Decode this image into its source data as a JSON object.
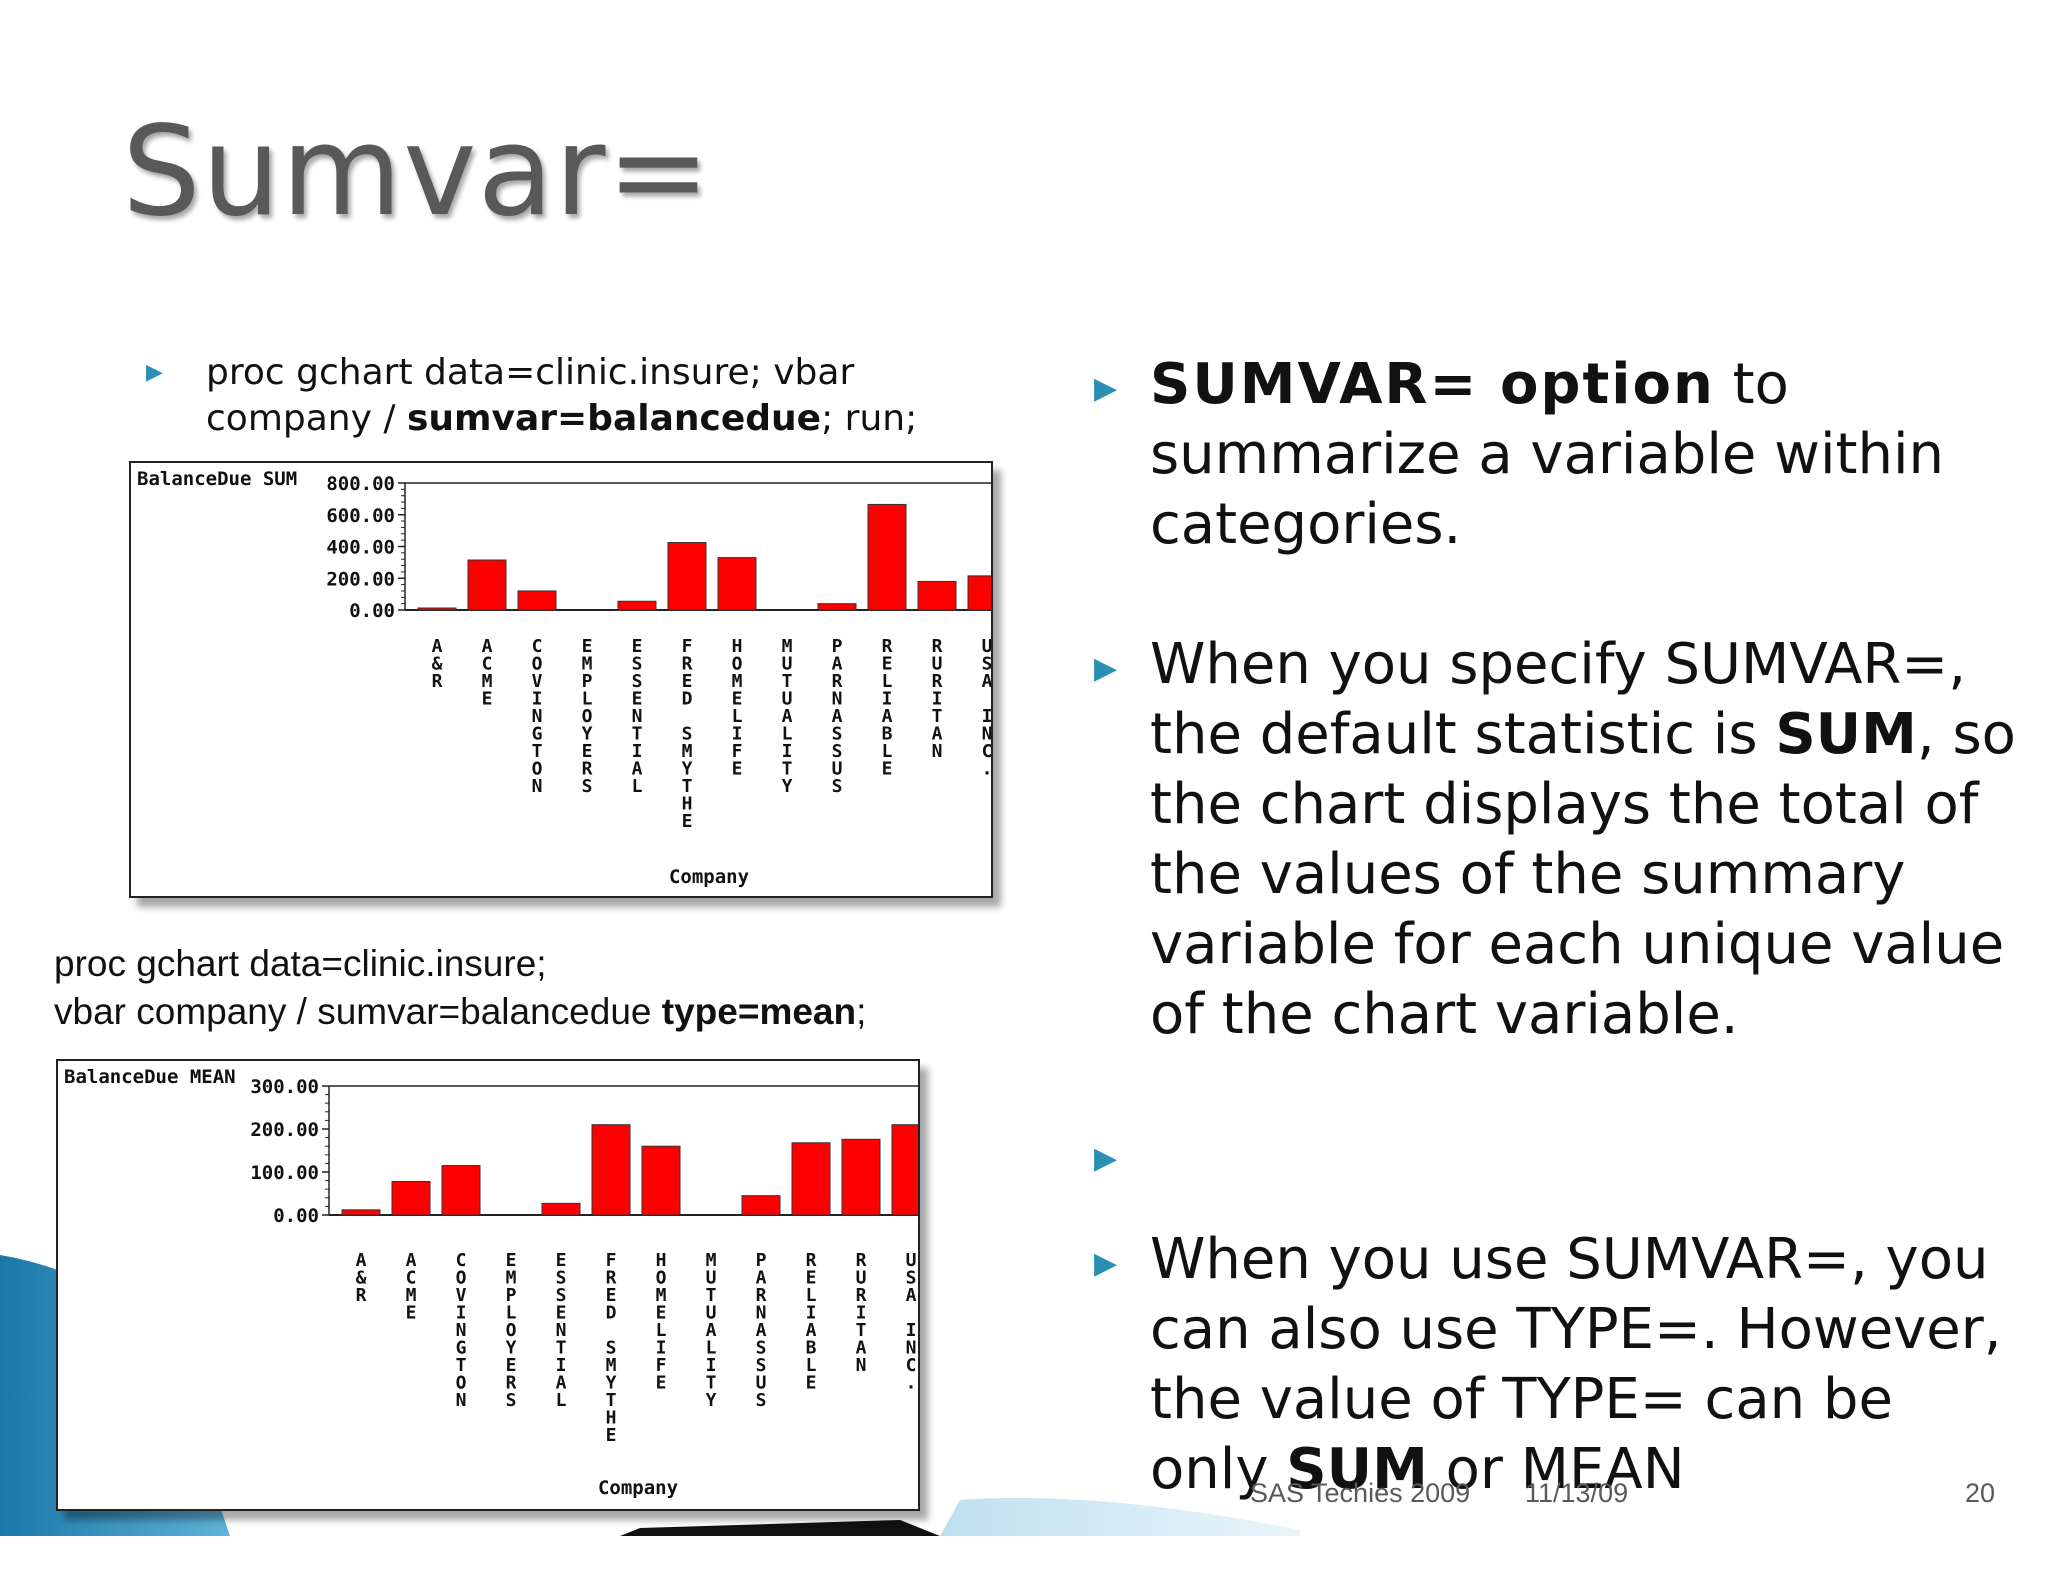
{
  "slide": {
    "title": "Sumvar=",
    "page_number": "20",
    "footer_left": "SAS Techies 2009",
    "footer_date": "11/13/09"
  },
  "code1": {
    "pre": "proc gchart data=clinic.insure; vbar company / ",
    "bold": "sumvar=balancedue",
    "post": "; run;"
  },
  "code2": {
    "line1": "proc gchart data=clinic.insure;",
    "line2_pre": "vbar company / sumvar=balancedue ",
    "line2_bold": "type=mean",
    "line2_post": ";"
  },
  "bullets": [
    {
      "bold": "SUMVAR= option",
      "text": " to summarize a variable within categories."
    },
    {
      "pre": "When you specify SUMVAR=, the default statistic is ",
      "bold": "SUM",
      "post": ", so the chart displays the total of the values of the summary variable for each unique value of the chart variable."
    },
    {
      "text": ""
    },
    {
      "pre": "When you use SUMVAR=, you can also use TYPE=. However, the value of TYPE= can be only ",
      "bold": "SUM",
      "post": " or MEAN"
    }
  ],
  "colors": {
    "bar": "#ff0000",
    "accent": "#2a8fb2",
    "title": "#595959"
  },
  "chart_data": [
    {
      "type": "bar",
      "header_left": "BalanceDue",
      "header_right": "SUM",
      "xlabel": "Company",
      "categories": [
        "A&R",
        "ACME",
        "COVINGTON",
        "EMPLOYERS",
        "ESSENTIAL",
        "FRED SMYTHE",
        "HOMELIFE",
        "MUTUALITY",
        "PARNASSUS",
        "RELIABLE",
        "RURITAN",
        "USA INC."
      ],
      "values": [
        12,
        315,
        120,
        0,
        55,
        425,
        330,
        0,
        40,
        665,
        180,
        215
      ],
      "ylim": [
        0,
        800
      ],
      "ticks": [
        "0.00",
        "200.00",
        "400.00",
        "600.00",
        "800.00"
      ]
    },
    {
      "type": "bar",
      "header_left": "BalanceDue",
      "header_right": "MEAN",
      "xlabel": "Company",
      "categories": [
        "A&R",
        "ACME",
        "COVINGTON",
        "EMPLOYERS",
        "ESSENTIAL",
        "FRED SMYTHE",
        "HOMELIFE",
        "MUTUALITY",
        "PARNASSUS",
        "RELIABLE",
        "RURITAN",
        "USA INC."
      ],
      "values": [
        12,
        78,
        115,
        0,
        27,
        210,
        160,
        0,
        45,
        168,
        176,
        210
      ],
      "ylim": [
        0,
        300
      ],
      "ticks": [
        "0.00",
        "100.00",
        "200.00",
        "300.00"
      ]
    }
  ]
}
